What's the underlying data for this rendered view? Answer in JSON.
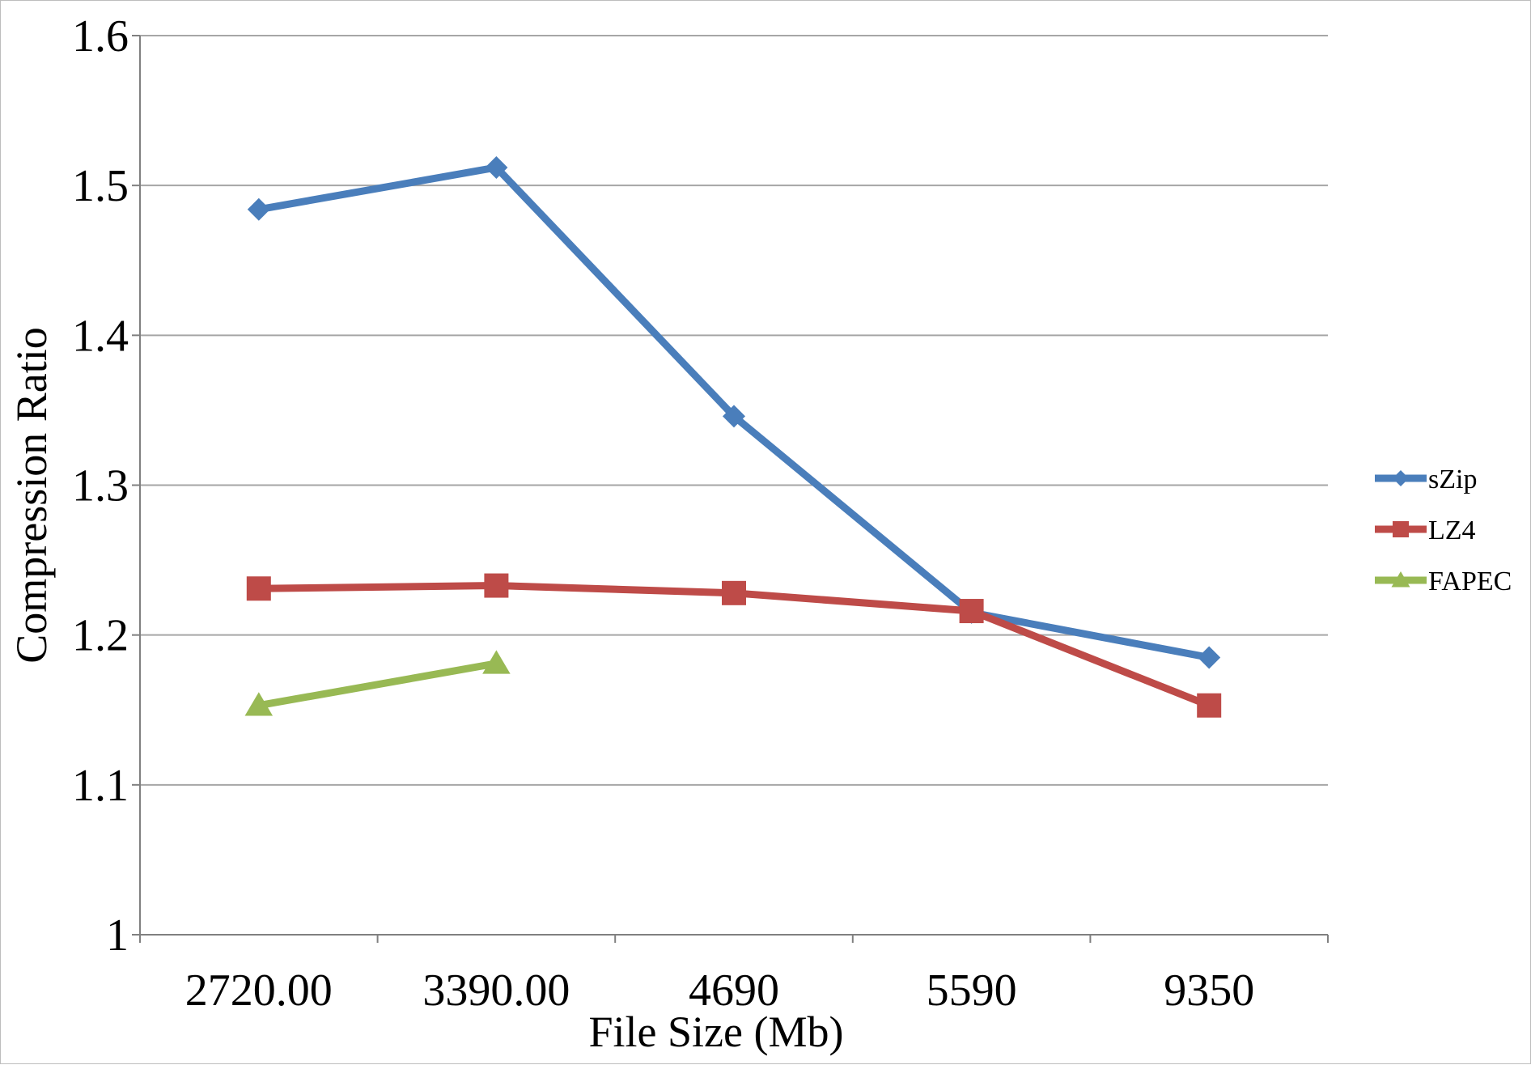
{
  "chart_data": {
    "type": "line",
    "categories": [
      "2720.00",
      "3390.00",
      "4690",
      "5590",
      "9350"
    ],
    "xlabel": "File Size (Mb)",
    "ylabel": "Compression Ratio",
    "ylim": [
      1,
      1.6
    ],
    "yticks": [
      "1",
      "1.1",
      "1.2",
      "1.3",
      "1.4",
      "1.5",
      "1.6"
    ],
    "grid": "horizontal",
    "legend_position": "right",
    "series": [
      {
        "name": "sZip",
        "marker": "diamond",
        "color": "#4a7ebb",
        "values": [
          1.484,
          1.512,
          1.346,
          1.215,
          1.185
        ]
      },
      {
        "name": "LZ4",
        "marker": "square",
        "color": "#be4b48",
        "values": [
          1.231,
          1.233,
          1.228,
          1.216,
          1.153
        ]
      },
      {
        "name": "FAPEC",
        "marker": "triangle",
        "color": "#98b954",
        "values": [
          1.153,
          1.181,
          null,
          null,
          null
        ]
      }
    ]
  }
}
